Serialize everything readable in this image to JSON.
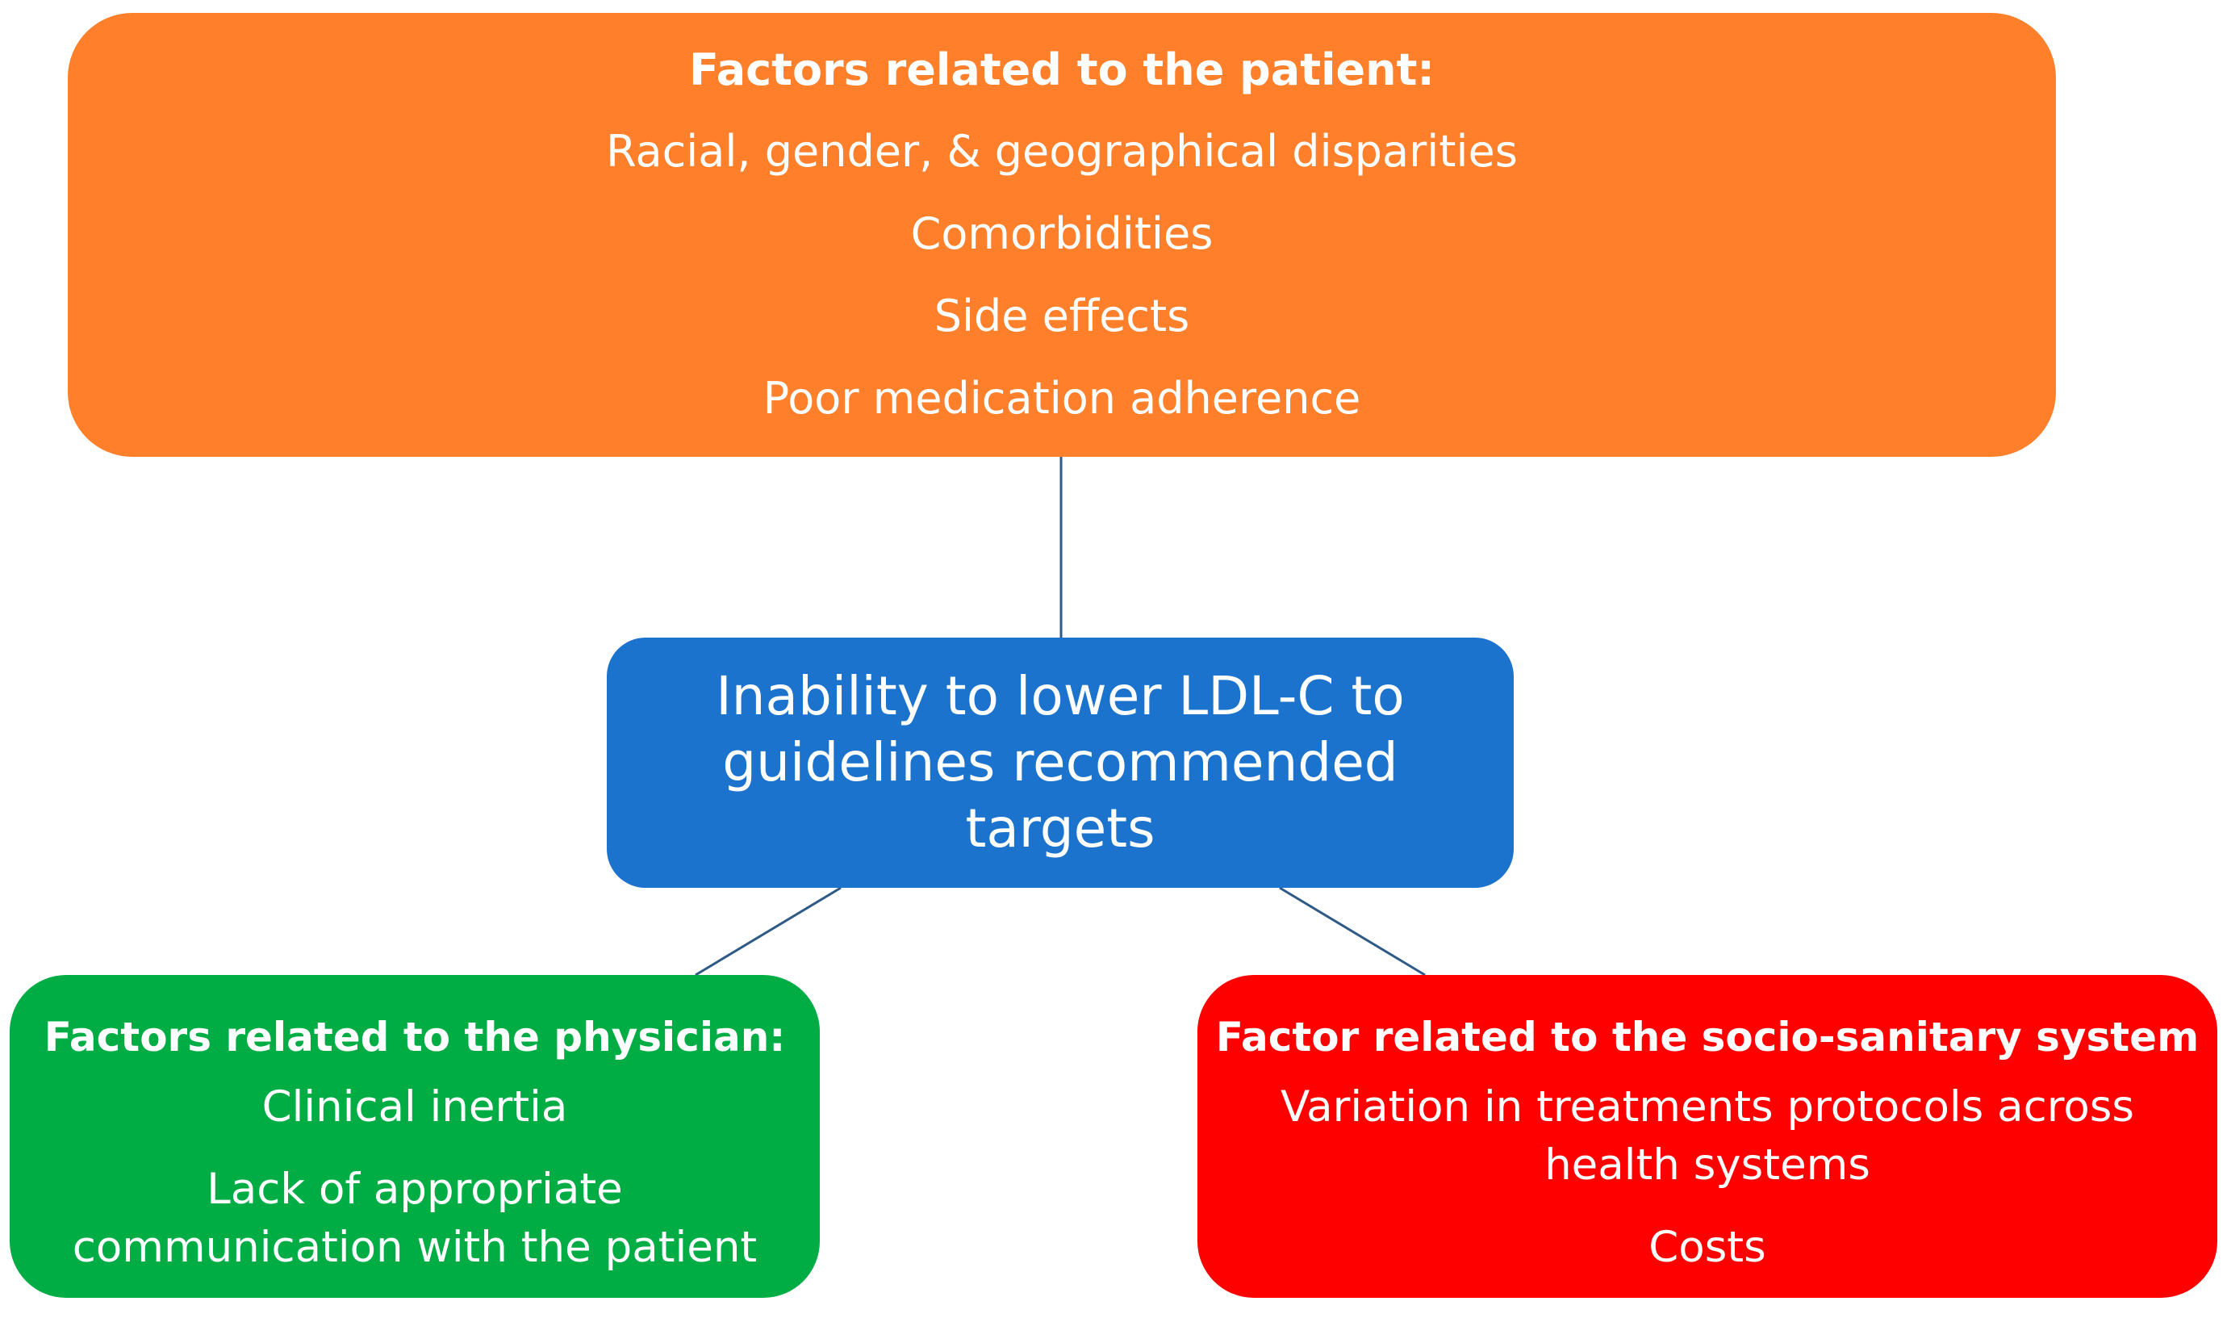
{
  "diagram": {
    "patient_box": {
      "heading": "Factors related to the patient:",
      "items": [
        "Racial, gender, & geographical disparities",
        "Comorbidities",
        "Side effects",
        "Poor medication adherence"
      ],
      "color": "#FF7F2A"
    },
    "center_box": {
      "lines": [
        "Inability to lower LDL-C to",
        "guidelines recommended targets"
      ],
      "color": "#1B73CE"
    },
    "physician_box": {
      "heading": "Factors related to the physician:",
      "items": [
        "Clinical inertia",
        "Lack of appropriate",
        "communication with the patient"
      ],
      "color": "#00AD45"
    },
    "system_box": {
      "heading": "Factor related to the socio-sanitary system",
      "items": [
        "Variation in treatments protocols across",
        "health systems",
        "Costs"
      ],
      "color": "#FF0000"
    },
    "connector_color": "#2E5A88"
  }
}
